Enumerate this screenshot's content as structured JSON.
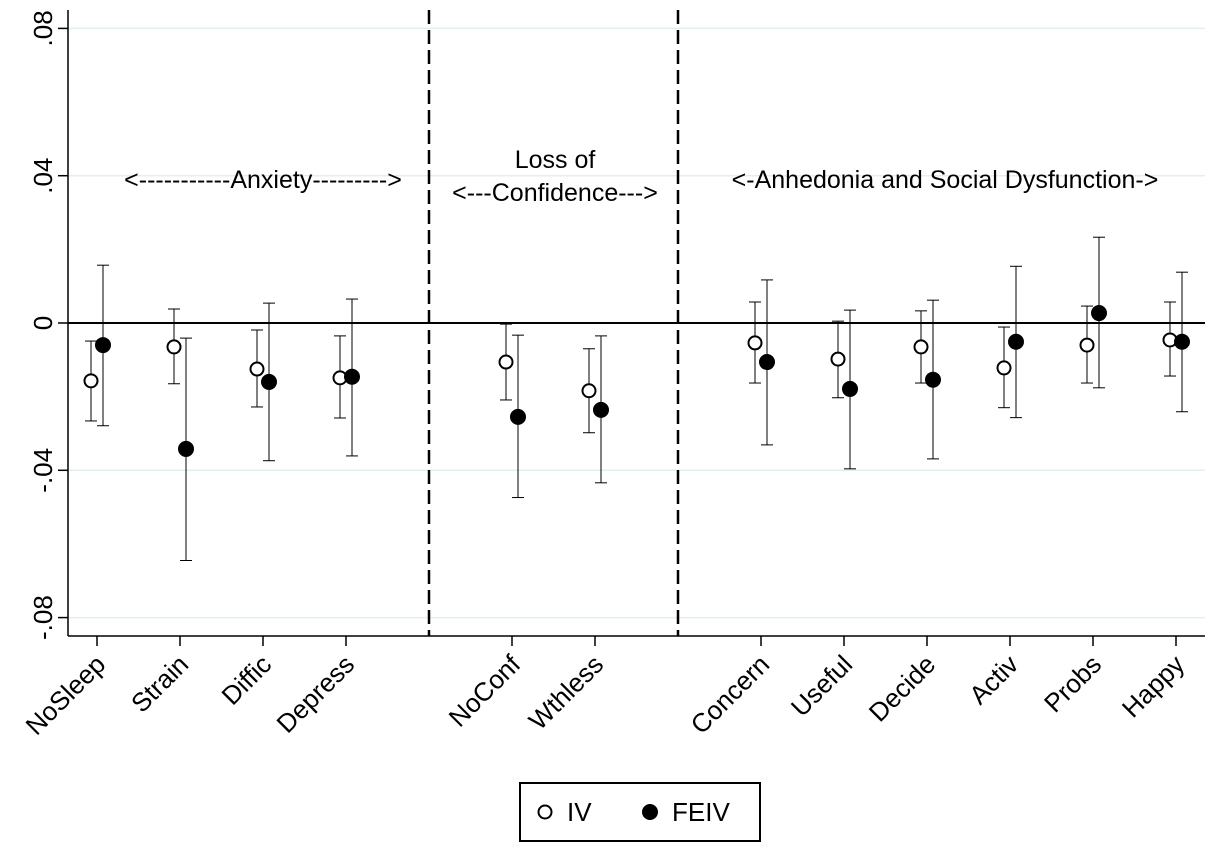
{
  "chart_data": {
    "type": "errorbar",
    "categories": [
      "NoSleep",
      "Strain",
      "Diffic",
      "Depress",
      null,
      "NoConf",
      "Wthless",
      null,
      "Concern",
      "Useful",
      "Decide",
      "Activ",
      "Probs",
      "Happy"
    ],
    "annotations": [
      "<-----------Anxiety--------->",
      "Loss of",
      "<---Confidence--->",
      "<-Anhedonia and Social Dysfunction->"
    ],
    "ylim": [
      -0.085,
      0.085
    ],
    "yticks": [
      {
        "value": -0.08,
        "label": "-.08"
      },
      {
        "value": -0.04,
        "label": "-.04"
      },
      0,
      {
        "value": 0.04,
        "label": ".04"
      },
      {
        "value": 0.08,
        "label": ".08"
      }
    ],
    "reference_line": 0,
    "grid": true,
    "legend_position": "bottom",
    "series": [
      {
        "name": "IV",
        "color": "#000000",
        "marker": "hollow",
        "values": [
          -0.0157,
          -0.0065,
          -0.0125,
          -0.0149,
          null,
          -0.0106,
          -0.0184,
          null,
          -0.0054,
          -0.0098,
          -0.0065,
          -0.0122,
          -0.006,
          -0.0046
        ],
        "upper": [
          -0.0049,
          0.0038,
          -0.0019,
          -0.0035,
          null,
          -0.0003,
          -0.007,
          null,
          0.0057,
          0.0005,
          0.0033,
          -0.0011,
          0.0046,
          0.0057
        ],
        "lower": [
          -0.0266,
          -0.0165,
          -0.0228,
          -0.0258,
          null,
          -0.0209,
          -0.0298,
          null,
          -0.0163,
          -0.0203,
          -0.0163,
          -0.023,
          -0.0163,
          -0.0144
        ]
      },
      {
        "name": "FEIV",
        "color": "#000000",
        "marker": "filled",
        "values": [
          -0.006,
          -0.0342,
          -0.016,
          -0.0146,
          null,
          -0.0255,
          -0.0236,
          null,
          -0.0106,
          -0.0179,
          -0.0154,
          -0.0051,
          0.0027,
          -0.0051
        ],
        "upper": [
          0.0157,
          -0.0041,
          0.0054,
          0.0065,
          null,
          -0.0033,
          -0.0035,
          null,
          0.0117,
          0.0035,
          0.0062,
          0.0154,
          0.0233,
          0.0138
        ],
        "lower": [
          -0.0279,
          -0.0645,
          -0.0374,
          -0.0361,
          null,
          -0.0474,
          -0.0434,
          null,
          -0.0331,
          -0.0396,
          -0.0369,
          -0.0257,
          -0.0176,
          -0.0241
        ]
      }
    ]
  }
}
